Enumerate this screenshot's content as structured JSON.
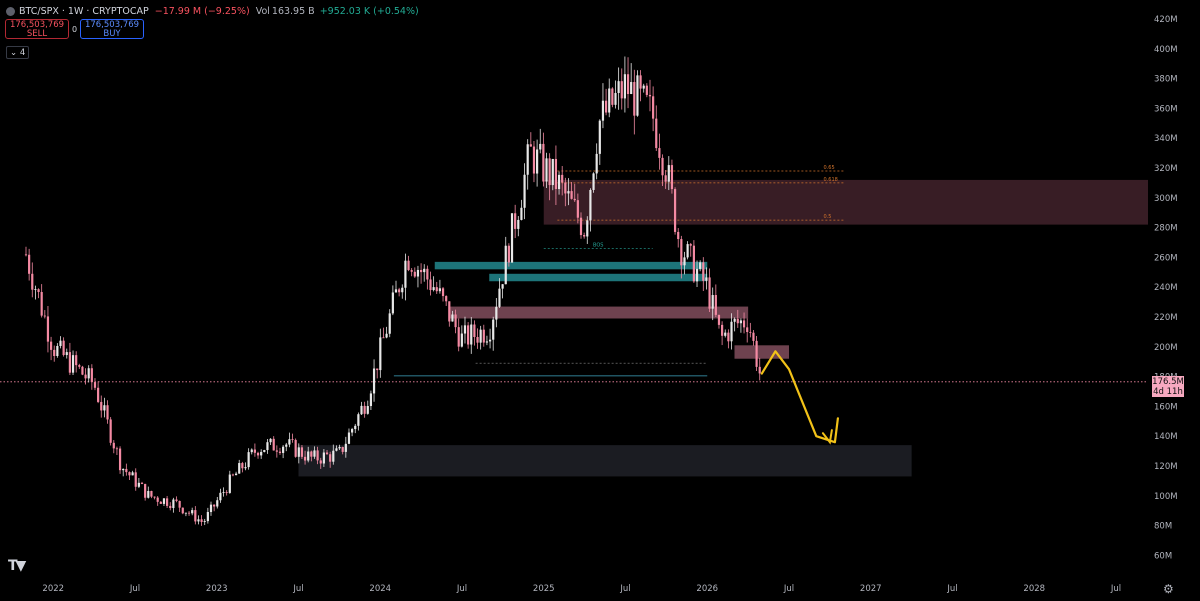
{
  "header": {
    "symbol": "BTC/SPX · 1W · CRYPTOCAP",
    "change_label": "",
    "change": "−17.99 M (−9.25%)",
    "vol_label": "Vol",
    "vol_value": "163.95 B",
    "vol_change": "+952.03 K (+0.54%)"
  },
  "trade": {
    "sell_price": "176,503,769",
    "sell_label": "SELL",
    "spread": "0",
    "buy_price": "176,503,769",
    "buy_label": "BUY"
  },
  "indicator_count": "4",
  "last_price_label": {
    "value": "176.5M",
    "countdown": "4d 11h"
  },
  "colors": {
    "background": "#000000",
    "up_candle": "#e8e8e8",
    "down_candle": "#f48aa3",
    "zone_supply": "#3b1f27",
    "zone_pink": "#7a4958",
    "zone_teal": "#1f7a80",
    "zone_demand": "#1b1c22",
    "projection": "#f2c218",
    "price_line": "#f48aa3"
  },
  "icons": [
    "tradingview-logo-icon",
    "settings-gear-icon",
    "symbol-dot-icon"
  ],
  "chart_data": {
    "type": "candlestick",
    "title": "BTC/SPX",
    "y_unit": "M",
    "y_range": [
      55,
      425
    ],
    "y_ticks": [
      "420M",
      "400M",
      "380M",
      "360M",
      "340M",
      "320M",
      "300M",
      "280M",
      "260M",
      "240M",
      "220M",
      "200M",
      "180M",
      "160M",
      "140M",
      "120M",
      "100M",
      "80M",
      "60M"
    ],
    "x_ticks": [
      "2022",
      "Jul",
      "2023",
      "Jul",
      "2024",
      "Jul",
      "2025",
      "Jul",
      "2026",
      "Jul",
      "2027",
      "Jul",
      "2028",
      "Jul"
    ],
    "x_range": [
      "2021-11",
      "2028-11"
    ],
    "last_price": 176.5,
    "path_quarterly_approx": [
      {
        "t": "2021-11",
        "v": 262
      },
      {
        "t": "2022-01",
        "v": 200
      },
      {
        "t": "2022-04",
        "v": 175
      },
      {
        "t": "2022-06",
        "v": 120
      },
      {
        "t": "2022-08",
        "v": 100
      },
      {
        "t": "2022-10",
        "v": 95
      },
      {
        "t": "2022-12",
        "v": 82
      },
      {
        "t": "2023-02",
        "v": 110
      },
      {
        "t": "2023-04",
        "v": 132
      },
      {
        "t": "2023-06",
        "v": 135
      },
      {
        "t": "2023-08",
        "v": 125
      },
      {
        "t": "2023-10",
        "v": 128
      },
      {
        "t": "2023-12",
        "v": 165
      },
      {
        "t": "2024-03",
        "v": 262
      },
      {
        "t": "2024-05",
        "v": 240
      },
      {
        "t": "2024-07",
        "v": 205
      },
      {
        "t": "2024-09",
        "v": 212
      },
      {
        "t": "2024-11",
        "v": 290
      },
      {
        "t": "2024-12",
        "v": 330
      },
      {
        "t": "2025-02",
        "v": 310
      },
      {
        "t": "2025-04",
        "v": 280
      },
      {
        "t": "2025-05",
        "v": 350
      },
      {
        "t": "2025-07",
        "v": 375
      },
      {
        "t": "2025-09",
        "v": 355
      },
      {
        "t": "2025-10",
        "v": 320
      },
      {
        "t": "2025-11",
        "v": 268
      },
      {
        "t": "2026-01",
        "v": 240
      },
      {
        "t": "2026-02",
        "v": 205
      },
      {
        "t": "2026-03",
        "v": 215
      },
      {
        "t": "2026-04",
        "v": 218
      },
      {
        "t": "2026-05",
        "v": 176.5
      }
    ],
    "zones": [
      {
        "kind": "supply",
        "from": "2025-01",
        "to": "2028-11",
        "low": 282,
        "high": 312
      },
      {
        "kind": "resistance",
        "from": "2024-06",
        "to": "2026-04",
        "low": 219,
        "high": 227
      },
      {
        "kind": "resistance",
        "from": "2026-03",
        "to": "2026-07",
        "low": 192,
        "high": 201
      },
      {
        "kind": "support",
        "from": "2024-05",
        "to": "2026-01",
        "low": 252,
        "high": 257
      },
      {
        "kind": "support",
        "from": "2024-09",
        "to": "2026-01",
        "low": 244,
        "high": 249
      },
      {
        "kind": "demand",
        "from": "2023-07",
        "to": "2027-04",
        "low": 113,
        "high": 134
      }
    ],
    "annotations": [
      {
        "text": "0.65",
        "price": 318
      },
      {
        "text": "0.618",
        "price": 310
      },
      {
        "text": "0.5",
        "price": 285
      },
      {
        "text": "BOS",
        "price": 266
      }
    ],
    "projection_path": [
      {
        "t": "2026-05",
        "v": 182
      },
      {
        "t": "2026-06",
        "v": 197
      },
      {
        "t": "2026-07",
        "v": 185
      },
      {
        "t": "2026-09",
        "v": 140
      },
      {
        "t": "2026-10",
        "v": 136
      },
      {
        "t": "2026-10",
        "v": 152
      }
    ]
  }
}
